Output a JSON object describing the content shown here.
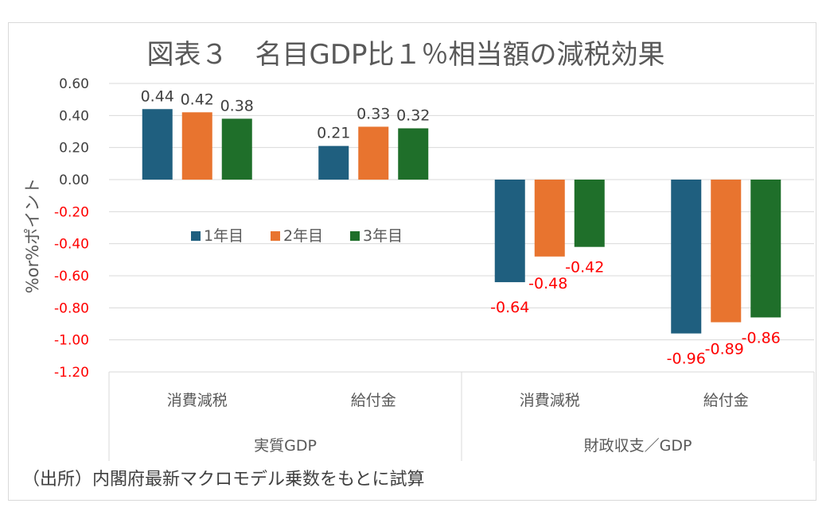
{
  "chart_data": {
    "type": "bar",
    "title": "図表３　名目GDP比１％相当額の減税効果",
    "ylabel": "%or%ポイント",
    "xlabel": "",
    "ylim": [
      -1.2,
      0.6
    ],
    "yticks": [
      "0.60",
      "0.40",
      "0.20",
      "0.00",
      "-0.20",
      "-0.40",
      "-0.60",
      "-0.80",
      "-1.00",
      "-1.20"
    ],
    "ytick_values": [
      0.6,
      0.4,
      0.2,
      0.0,
      -0.2,
      -0.4,
      -0.6,
      -0.8,
      -1.0,
      -1.2
    ],
    "categories": [
      "消費減税",
      "給付金",
      "消費減税",
      "給付金"
    ],
    "groups": [
      "実質GDP",
      "財政収支／GDP"
    ],
    "series": [
      {
        "name": "1年目",
        "color": "#1f5f7f",
        "values": [
          0.44,
          0.21,
          -0.64,
          -0.96
        ],
        "labels": [
          "0.44",
          "0.21",
          "-0.64",
          "-0.96"
        ]
      },
      {
        "name": "2年目",
        "color": "#e8742f",
        "values": [
          0.42,
          0.33,
          -0.48,
          -0.89
        ],
        "labels": [
          "0.42",
          "0.33",
          "-0.48",
          "-0.89"
        ]
      },
      {
        "name": "3年目",
        "color": "#1f6f2a",
        "values": [
          0.38,
          0.32,
          -0.42,
          -0.86
        ],
        "labels": [
          "0.38",
          "0.32",
          "-0.42",
          "-0.86"
        ]
      }
    ],
    "legend_position": "center-left",
    "grid": true,
    "negative_label_color": "#ff0000",
    "footnote": "（出所）内閣府最新マクロモデル乗数をもとに試算"
  }
}
